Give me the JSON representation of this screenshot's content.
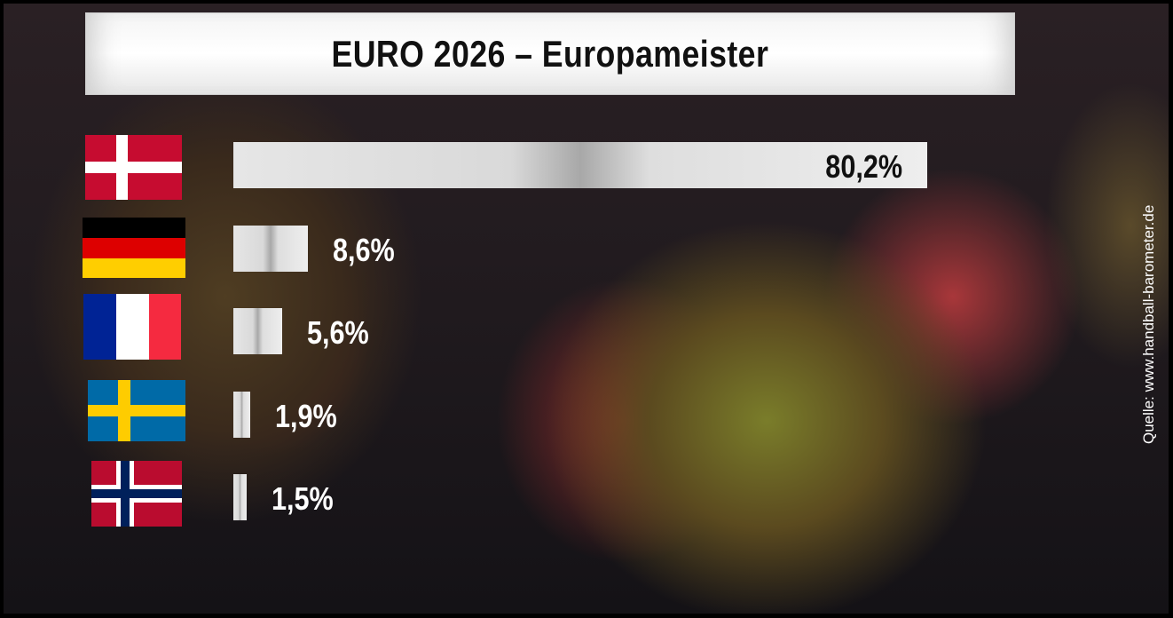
{
  "title": "EURO 2026 – Europameister",
  "source": "Quelle: www.handball-barometer.de",
  "chart_data": {
    "type": "bar",
    "orientation": "horizontal",
    "title": "EURO 2026 – Europameister",
    "categories": [
      "Dänemark",
      "Deutschland",
      "Frankreich",
      "Schweden",
      "Norwegen"
    ],
    "category_icons": [
      "flag-denmark",
      "flag-germany",
      "flag-france",
      "flag-sweden",
      "flag-norway"
    ],
    "values": [
      80.2,
      8.6,
      5.6,
      1.9,
      1.5
    ],
    "labels": [
      "80,2%",
      "8,6%",
      "5,6%",
      "1,9%",
      "1,5%"
    ],
    "unit": "%",
    "grid": false,
    "bar_color": "#dcdcdc"
  }
}
